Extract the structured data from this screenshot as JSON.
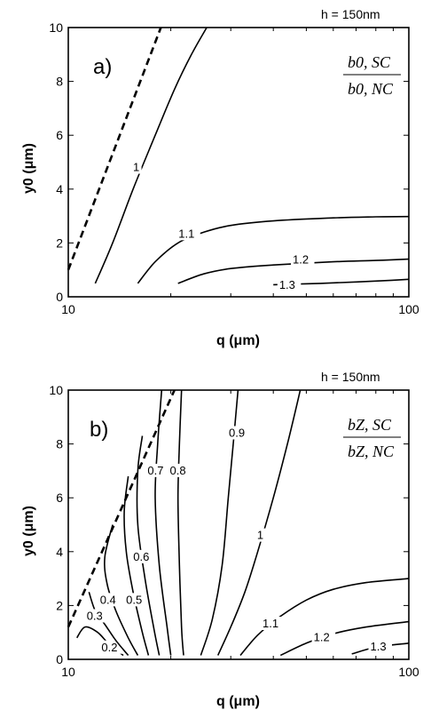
{
  "chart_data": [
    {
      "type": "line",
      "panel_label": "a)",
      "height_note": "h = 150nm",
      "ratio_numerator": "b0, SC",
      "ratio_denominator": "b0, NC",
      "xlabel": "q (μm)",
      "ylabel": "y0 (μm)",
      "x_scale": "log",
      "xlim": [
        10,
        100
      ],
      "ylim": [
        0,
        10
      ],
      "x_ticks": [
        "10",
        "100"
      ],
      "y_ticks": [
        "0",
        "2",
        "4",
        "6",
        "8",
        "10"
      ],
      "dashed_boundary": {
        "x": [
          10,
          18.7
        ],
        "y": [
          1.0,
          10
        ]
      },
      "series": [
        {
          "name": "1",
          "x": [
            12,
            13.5,
            15.5,
            18,
            20.5,
            23,
            25.5
          ],
          "y": [
            0.5,
            2.0,
            4.0,
            6.0,
            7.7,
            9.0,
            10.0
          ]
        },
        {
          "name": "1.1",
          "x": [
            16,
            18,
            21,
            25,
            30,
            40,
            60,
            80,
            100
          ],
          "y": [
            0.5,
            1.3,
            2.0,
            2.4,
            2.65,
            2.82,
            2.93,
            2.97,
            2.98
          ]
        },
        {
          "name": "1.2",
          "x": [
            21,
            25,
            30,
            40,
            60,
            80,
            100
          ],
          "y": [
            0.5,
            0.85,
            1.05,
            1.18,
            1.3,
            1.35,
            1.4
          ]
        },
        {
          "name": "1.3",
          "x": [
            40,
            55,
            70,
            85,
            100
          ],
          "y": [
            0.45,
            0.5,
            0.55,
            0.6,
            0.65
          ]
        }
      ]
    },
    {
      "type": "line",
      "panel_label": "b)",
      "height_note": "h = 150nm",
      "ratio_numerator": "bZ, SC",
      "ratio_denominator": "bZ, NC",
      "xlabel": "q (μm)",
      "ylabel": "y0 (μm)",
      "x_scale": "log",
      "xlim": [
        10,
        100
      ],
      "ylim": [
        0,
        10
      ],
      "x_ticks": [
        "10",
        "100"
      ],
      "y_ticks": [
        "0",
        "2",
        "4",
        "6",
        "8",
        "10"
      ],
      "dashed_boundary": {
        "x": [
          10,
          20.5
        ],
        "y": [
          1.2,
          10
        ]
      },
      "series": [
        {
          "name": "0.2",
          "x": [
            10.6,
            11.2,
            12.2,
            13.2,
            14.5
          ],
          "y": [
            0.8,
            1.2,
            1.0,
            0.55,
            0.15
          ]
        },
        {
          "name": "0.3",
          "x": [
            11.5,
            12.0,
            12.8,
            13.8,
            15.0
          ],
          "y": [
            2.5,
            1.8,
            1.3,
            0.7,
            0.15
          ]
        },
        {
          "name": "0.4",
          "x": [
            13.5,
            12.8,
            13.0,
            13.8,
            15.0,
            16.0
          ],
          "y": [
            5.0,
            3.8,
            2.8,
            1.8,
            0.8,
            0.15
          ]
        },
        {
          "name": "0.5",
          "x": [
            15.0,
            14.6,
            14.8,
            15.5,
            16.5,
            17.2
          ],
          "y": [
            6.8,
            5.5,
            4.0,
            2.5,
            1.0,
            0.15
          ]
        },
        {
          "name": "0.6",
          "x": [
            16.5,
            16.0,
            16.0,
            16.8,
            17.8,
            18.5
          ],
          "y": [
            8.3,
            7.0,
            5.0,
            3.0,
            1.2,
            0.15
          ]
        },
        {
          "name": "0.7",
          "x": [
            18.8,
            18.3,
            18.0,
            18.5,
            19.5,
            20.0
          ],
          "y": [
            10.0,
            8.0,
            6.0,
            3.5,
            1.2,
            0.15
          ]
        },
        {
          "name": "0.8",
          "x": [
            21.5,
            21.2,
            21.0,
            21.2,
            21.5,
            21.8
          ],
          "y": [
            10.0,
            8.0,
            6.0,
            3.5,
            1.2,
            0.15
          ]
        },
        {
          "name": "0.9",
          "x": [
            31.5,
            30.5,
            29.5,
            28.3,
            26.5,
            24.5
          ],
          "y": [
            10.0,
            8.0,
            6.0,
            3.5,
            1.5,
            0.15
          ]
        },
        {
          "name": "1",
          "x": [
            48.0,
            44.0,
            40.0,
            36.0,
            33.0,
            30.0,
            27.5
          ],
          "y": [
            10.0,
            8.0,
            6.0,
            4.0,
            2.5,
            1.2,
            0.15
          ]
        },
        {
          "name": "1.1",
          "x": [
            32.0,
            36.0,
            42.0,
            50.0,
            60.0,
            75.0,
            100.0
          ],
          "y": [
            0.15,
            0.9,
            1.6,
            2.2,
            2.6,
            2.85,
            3.0
          ]
        },
        {
          "name": "1.2",
          "x": [
            42.0,
            50.0,
            60.0,
            75.0,
            100.0
          ],
          "y": [
            0.15,
            0.6,
            0.95,
            1.2,
            1.4
          ]
        },
        {
          "name": "1.3",
          "x": [
            68.0,
            80.0,
            100.0
          ],
          "y": [
            0.2,
            0.45,
            0.6
          ]
        }
      ]
    }
  ]
}
